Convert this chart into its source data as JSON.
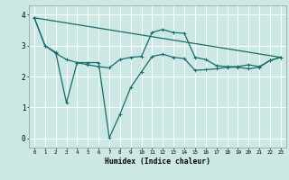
{
  "title": "",
  "xlabel": "Humidex (Indice chaleur)",
  "bg_color": "#cce8e4",
  "grid_color": "#ffffff",
  "line_color": "#1a6b6b",
  "xlim": [
    -0.5,
    23.5
  ],
  "ylim": [
    -0.3,
    4.3
  ],
  "line1_x": [
    0,
    1,
    2,
    3,
    4,
    5,
    6,
    7,
    8,
    9,
    10,
    11,
    12,
    13,
    14,
    15,
    16,
    17,
    18,
    19,
    20,
    21,
    22,
    23
  ],
  "line1_y": [
    3.9,
    3.0,
    2.75,
    2.55,
    2.45,
    2.38,
    2.32,
    2.28,
    2.55,
    2.62,
    2.65,
    3.43,
    3.52,
    3.42,
    3.4,
    2.62,
    2.55,
    2.35,
    2.32,
    2.32,
    2.38,
    2.32,
    2.52,
    2.62
  ],
  "line2_x": [
    0,
    1,
    2,
    3,
    4,
    5,
    6,
    7,
    8,
    9,
    10,
    11,
    12,
    13,
    14,
    15,
    16,
    17,
    18,
    19,
    20,
    21,
    22,
    23
  ],
  "line2_y": [
    3.9,
    3.0,
    2.78,
    1.15,
    2.45,
    2.45,
    2.45,
    0.02,
    0.78,
    1.65,
    2.15,
    2.65,
    2.72,
    2.62,
    2.58,
    2.2,
    2.22,
    2.25,
    2.3,
    2.3,
    2.25,
    2.3,
    2.52,
    2.62
  ],
  "line3_x": [
    0,
    23
  ],
  "line3_y": [
    3.9,
    2.62
  ]
}
